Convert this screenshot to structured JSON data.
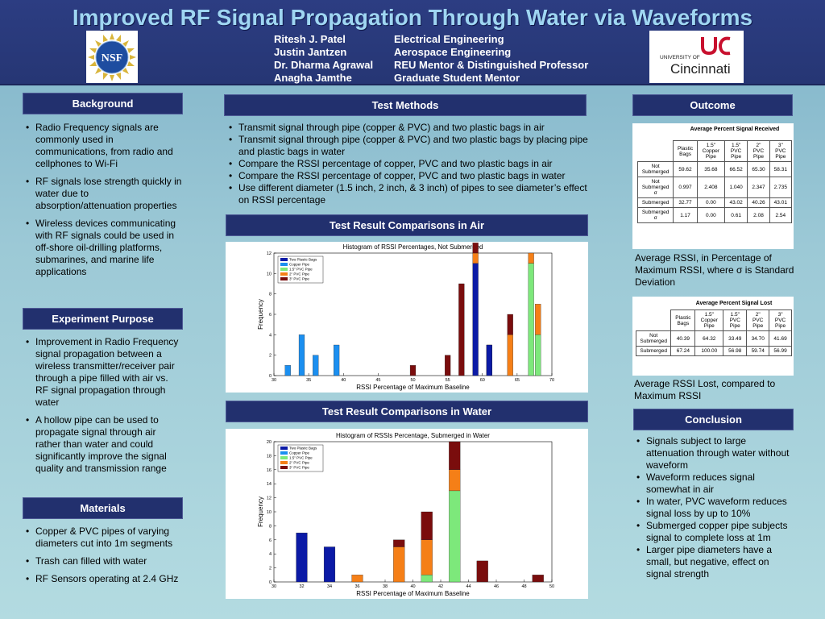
{
  "header": {
    "title": "Improved RF Signal Propagation Through Water via Waveforms",
    "people": [
      {
        "name": "Ritesh J. Patel",
        "role": "Electrical Engineering"
      },
      {
        "name": "Justin Jantzen",
        "role": "Aerospace Engineering"
      },
      {
        "name": "Dr. Dharma Agrawal",
        "role": "REU Mentor & Distinguished Professor"
      },
      {
        "name": "Anagha Jamthe",
        "role": "Graduate Student Mentor"
      }
    ],
    "logos": {
      "left": "NSF",
      "right_top": "UNIVERSITY OF",
      "right_name": "Cincinnati"
    }
  },
  "background": {
    "heading": "Background",
    "bullets": [
      "Radio Frequency signals are commonly used in communications, from radio and cellphones to Wi-Fi",
      "RF signals lose strength quickly in water due to absorption/attenuation properties",
      "Wireless devices communicating with RF signals could be used in off-shore oil-drilling platforms, submarines, and marine life applications"
    ]
  },
  "purpose": {
    "heading": "Experiment Purpose",
    "bullets": [
      "Improvement in Radio Frequency signal propagation between a wireless transmitter/receiver pair through a pipe filled with air vs. RF signal propagation through water",
      "A hollow pipe can be used to propagate signal through air rather than water and could significantly improve the signal quality and transmission range"
    ]
  },
  "materials": {
    "heading": "Materials",
    "bullets": [
      "Copper & PVC pipes of varying diameters cut into 1m segments",
      "Trash can filled with water",
      "RF Sensors operating at 2.4 GHz"
    ]
  },
  "methods": {
    "heading": "Test Methods",
    "bullets": [
      "Transmit signal through pipe (copper & PVC) and two plastic bags in air",
      "Transmit signal through pipe (copper & PVC) and two plastic bags by placing pipe and plastic bags in water",
      "Compare the RSSI percentage of copper, PVC and two plastic bags in air",
      "Compare the RSSI percentage of copper, PVC and two plastic bags in water",
      "Use different diameter (1.5 inch, 2 inch, & 3 inch) of pipes to see diameter’s effect on RSSI percentage"
    ]
  },
  "air_section": {
    "heading": "Test Result Comparisons in Air"
  },
  "water_section": {
    "heading": "Test Result Comparisons in Water"
  },
  "outcome": {
    "heading": "Outcome",
    "received_table": {
      "title": "Average Percent Signal Received",
      "columns": [
        "Plastic Bags",
        "1.5\" Copper Pipe",
        "1.5\" PVC Pipe",
        "2\" PVC Pipe",
        "3\" PVC Pipe"
      ],
      "rows": [
        {
          "label": "Not Submerged",
          "values": [
            "59.62",
            "35.68",
            "66.52",
            "65.30",
            "58.31"
          ]
        },
        {
          "label": "Not Submerged σ",
          "values": [
            "0.997",
            "2.408",
            "1.040",
            "2.347",
            "2.735"
          ]
        },
        {
          "label": "Submerged",
          "values": [
            "32.77",
            "0.00",
            "43.02",
            "40.26",
            "43.01"
          ]
        },
        {
          "label": "Submerged σ",
          "values": [
            "1.17",
            "0.00",
            "0.61",
            "2.08",
            "2.54"
          ]
        }
      ]
    },
    "received_caption": "Average RSSI, in Percentage of Maximum RSSI, where σ is Standard Deviation",
    "lost_table": {
      "title": "Average Percent Signal Lost",
      "columns": [
        "Plastic Bags",
        "1.5\" Copper Pipe",
        "1.5\" PVC Pipe",
        "2\" PVC Pipe",
        "3\" PVC Pipe"
      ],
      "rows": [
        {
          "label": "Not Submerged",
          "values": [
            "40.39",
            "64.32",
            "33.49",
            "34.70",
            "41.69"
          ]
        },
        {
          "label": "Submerged",
          "values": [
            "67.24",
            "100.00",
            "56.98",
            "59.74",
            "56.99"
          ]
        }
      ]
    },
    "lost_caption": "Average RSSI Lost, compared to Maximum RSSI"
  },
  "conclusion": {
    "heading": "Conclusion",
    "bullets": [
      "Signals subject to large attenuation through water without waveform",
      "Waveform reduces signal somewhat in air",
      "In water, PVC waveform reduces signal loss by up to 10%",
      "Submerged copper pipe subjects signal to complete loss at 1m",
      "Larger pipe diameters have a small, but negative, effect on signal strength"
    ]
  },
  "chart_data": [
    {
      "type": "bar",
      "title": "Histogram of RSSI Percentages, Not Submerged",
      "xlabel": "RSSI Percentage of Maximum Baseline",
      "ylabel": "Frequency",
      "xlim": [
        30,
        70
      ],
      "ylim": [
        0,
        12
      ],
      "xticks": [
        30,
        35,
        40,
        45,
        50,
        55,
        60,
        65,
        70
      ],
      "yticks": [
        0,
        2,
        4,
        6,
        8,
        10,
        12
      ],
      "legend_position": "top-left",
      "bar_width": 0.8,
      "series": [
        {
          "name": "Two Plastic Bags",
          "color": "#0b1aa6",
          "values": [
            [
              59,
              11
            ]
          ]
        },
        {
          "name": "Copper Pipe",
          "color": "#1b8ff0",
          "values": [
            [
              32,
              1
            ],
            [
              34,
              4
            ],
            [
              36,
              2
            ],
            [
              39,
              3
            ]
          ]
        },
        {
          "name": "1.5\" PVC Pipe",
          "color": "#7de87b",
          "values": [
            [
              67,
              11
            ],
            [
              68,
              4
            ]
          ]
        },
        {
          "name": "2\" PVC Pipe",
          "color": "#f57f17",
          "values": [
            [
              59,
              1
            ],
            [
              64,
              4
            ],
            [
              67,
              1
            ],
            [
              68,
              3
            ]
          ]
        },
        {
          "name": "3\" PVC Pipe",
          "color": "#7a0d0d",
          "values": [
            [
              50,
              1
            ],
            [
              55,
              2
            ],
            [
              57,
              9
            ],
            [
              59,
              1
            ],
            [
              61,
              3
            ],
            [
              64,
              2
            ]
          ]
        }
      ],
      "stacks": [
        {
          "x": 59,
          "order": [
            0,
            3,
            4
          ]
        },
        {
          "x": 67,
          "order": [
            2,
            3
          ]
        },
        {
          "x": 68,
          "order": [
            2,
            3
          ]
        },
        {
          "x": 64,
          "order": [
            3,
            4
          ]
        }
      ],
      "extra": [
        {
          "x": 61,
          "series": 0,
          "value": 3
        }
      ]
    },
    {
      "type": "bar",
      "title": "Histogram of RSSIs Percentage, Submerged in Water",
      "xlabel": "RSSI Percentage of Maximum Baseline",
      "ylabel": "Frequency",
      "xlim": [
        30,
        50
      ],
      "ylim": [
        0,
        20
      ],
      "xticks": [
        30,
        32,
        34,
        36,
        38,
        40,
        42,
        44,
        46,
        48,
        50
      ],
      "yticks": [
        0,
        2,
        4,
        6,
        8,
        10,
        12,
        14,
        16,
        18,
        20
      ],
      "legend_position": "top-left",
      "bar_width": 0.8,
      "series": [
        {
          "name": "Two Plastic Bags",
          "color": "#0b1aa6",
          "values": [
            [
              32,
              7
            ],
            [
              34,
              5
            ]
          ]
        },
        {
          "name": "Copper Pipe",
          "color": "#1b8ff0",
          "values": []
        },
        {
          "name": "1.5\" PVC Pipe",
          "color": "#7de87b",
          "values": [
            [
              41,
              1
            ],
            [
              43,
              13
            ]
          ]
        },
        {
          "name": "2\" PVC Pipe",
          "color": "#f57f17",
          "values": [
            [
              36,
              1
            ],
            [
              39,
              5
            ],
            [
              41,
              5
            ],
            [
              43,
              3
            ]
          ]
        },
        {
          "name": "3\" PVC Pipe",
          "color": "#7a0d0d",
          "values": [
            [
              39,
              1
            ],
            [
              41,
              4
            ],
            [
              43,
              4
            ],
            [
              45,
              3
            ],
            [
              49,
              1
            ]
          ]
        }
      ]
    }
  ]
}
